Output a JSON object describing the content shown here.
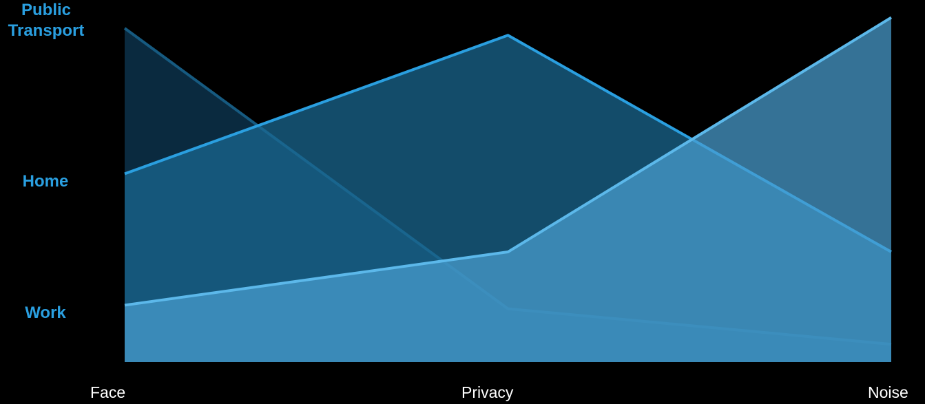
{
  "chart_data": {
    "type": "area",
    "categories": [
      "Face",
      "Privacy",
      "Noise"
    ],
    "y_categories": [
      "Work",
      "Home",
      "Public Transport"
    ],
    "title": "",
    "xlabel": "",
    "ylabel": "",
    "ylim": [
      0,
      1
    ],
    "grid": false,
    "legend": "none",
    "series": [
      {
        "values": [
          0.94,
          0.15,
          0.05
        ],
        "fill": "#0e3a57",
        "stroke": "#165a80"
      },
      {
        "values": [
          0.53,
          0.92,
          0.31
        ],
        "fill": "#1b6a93",
        "stroke": "#2a9fe0"
      },
      {
        "values": [
          0.16,
          0.31,
          0.97
        ],
        "fill": "#4a9ed0",
        "stroke": "#5cb8ea"
      }
    ]
  },
  "labels": {
    "y_public": "Public Transport",
    "y_home": "Home",
    "y_work": "Work",
    "x_face": "Face",
    "x_privacy": "Privacy",
    "x_noise": "Noise"
  },
  "colors": {
    "label_blue": "#2a9fe0",
    "axis_text": "#ffffff",
    "background": "#000000"
  }
}
